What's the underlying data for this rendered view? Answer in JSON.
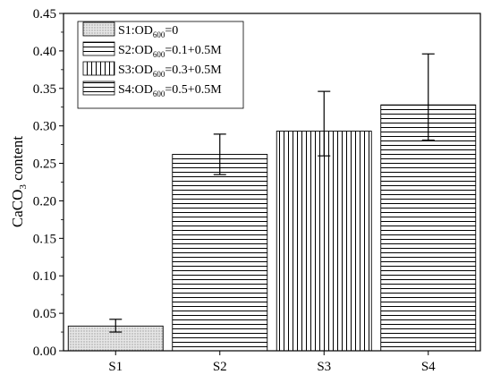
{
  "chart_data": {
    "type": "bar",
    "categories": [
      "S1",
      "S2",
      "S3",
      "S4"
    ],
    "values": [
      0.033,
      0.262,
      0.293,
      0.328
    ],
    "error": [
      [
        0.025,
        0.042
      ],
      [
        0.235,
        0.289
      ],
      [
        0.26,
        0.346
      ],
      [
        0.281,
        0.396
      ]
    ],
    "ylabel": {
      "pre": "CaCO",
      "sub": "3",
      "post": " content"
    },
    "ylim": [
      0,
      0.45
    ],
    "yticks": [
      "0.00",
      "0.05",
      "0.10",
      "0.15",
      "0.20",
      "0.25",
      "0.30",
      "0.35",
      "0.40",
      "0.45"
    ],
    "grid": false,
    "legend_position": "top-left",
    "legend": [
      {
        "pre": "S1:OD",
        "sub": "600",
        "post": "=0",
        "pattern": "dots"
      },
      {
        "pre": "S2:OD",
        "sub": "600",
        "post": "=0.1+0.5M",
        "pattern": "hlines"
      },
      {
        "pre": "S3:OD",
        "sub": "600",
        "post": "=0.3+0.5M",
        "pattern": "vlines"
      },
      {
        "pre": "S4:OD",
        "sub": "600",
        "post": "=0.5+0.5M",
        "pattern": "hlines"
      }
    ],
    "patterns": [
      "dots",
      "hlines",
      "vlines",
      "hlines"
    ],
    "colors": {
      "dots_fill": "#d9d9d9",
      "line": "#000000"
    }
  }
}
